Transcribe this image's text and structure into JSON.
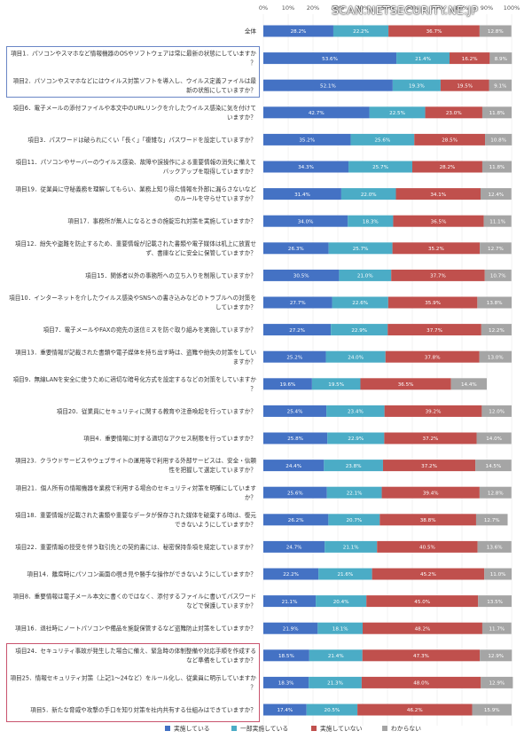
{
  "watermark": "SCAN.NETSECURITY.NE.JP",
  "colors": {
    "series": [
      "#4472c4",
      "#4bacc6",
      "#c0504d",
      "#a5a5a5"
    ],
    "highlight_blue": "#6a86c6",
    "highlight_red": "#c9546e"
  },
  "chart_data": {
    "type": "bar",
    "orientation": "horizontal",
    "stacked": "percent",
    "title": "",
    "xlim": [
      0,
      100
    ],
    "x_ticks": [
      "0%",
      "10%",
      "20%",
      "30%",
      "40%",
      "50%",
      "60%",
      "70%",
      "80%",
      "90%",
      "100%"
    ],
    "legend_position": "bottom",
    "series": [
      {
        "name": "実施している"
      },
      {
        "name": "一部実施している"
      },
      {
        "name": "実施していない"
      },
      {
        "name": "わからない"
      }
    ],
    "rows": [
      {
        "label": "全体",
        "values": [
          28.2,
          22.2,
          36.7,
          12.8
        ]
      },
      {
        "label": "項目1．パソコンやスマホなど情報機器のOSやソフトウェアは常に最新の状態にしていますか？",
        "values": [
          53.6,
          21.4,
          16.2,
          8.9
        ]
      },
      {
        "label": "項目2．パソコンやスマホなどにはウイルス対策ソフトを導入し、ウイルス定義ファイルは最新の状態にしていますか？",
        "values": [
          52.1,
          19.3,
          19.5,
          9.1
        ]
      },
      {
        "label": "項目6．電子メールの添付ファイルや本文中のURLリンクを介したウイルス感染に気を付けていますか？",
        "values": [
          42.7,
          22.5,
          23.0,
          11.8
        ]
      },
      {
        "label": "項目3．パスワードは破られにくい「長く」「複雑な」パスワードを設定していますか？",
        "values": [
          35.2,
          25.6,
          28.5,
          10.8
        ]
      },
      {
        "label": "項目11．パソコンやサーバーのウイルス感染、故障や誤操作による重要情報の消失に備えてバックアップを取得していますか？",
        "values": [
          34.3,
          25.7,
          28.2,
          11.8
        ]
      },
      {
        "label": "項目19．従業員に守秘義務を理解してもらい、業務上知り得た情報を外部に漏らさないなどのルールを守らせていますか？",
        "values": [
          31.4,
          22.0,
          34.1,
          12.4
        ]
      },
      {
        "label": "項目17．事務所が無人になるときの施錠忘れ対策を実施していますか？",
        "values": [
          34.0,
          18.3,
          36.5,
          11.1
        ]
      },
      {
        "label": "項目12．紛失や盗難を防止するため、重要情報が記載された書類や電子媒体は机上に放置せず、書庫などに安全に保管していますか？",
        "values": [
          26.3,
          25.7,
          35.2,
          12.7
        ]
      },
      {
        "label": "項目15．関係者以外の事務所への立ち入りを制限していますか？",
        "values": [
          30.5,
          21.0,
          37.7,
          10.7
        ]
      },
      {
        "label": "項目10．インターネットを介したウイルス感染やSNSへの書き込みなどのトラブルへの対策をしていますか？",
        "values": [
          27.7,
          22.6,
          35.9,
          13.8
        ]
      },
      {
        "label": "項目7．電子メールやFAXの宛先の送信ミスを防ぐ取り組みを実施していますか？",
        "values": [
          27.2,
          22.9,
          37.7,
          12.2
        ]
      },
      {
        "label": "項目13．重要情報が記載された書類や電子媒体を持ち出す時は、盗難や紛失の対策をしていますか？",
        "values": [
          25.2,
          24.0,
          37.8,
          13.0
        ]
      },
      {
        "label": "項目9．無線LANを安全に使うために適切な暗号化方式を設定するなどの対策をしていますか？",
        "values": [
          19.6,
          19.5,
          36.5,
          14.4
        ]
      },
      {
        "label": "項目20．従業員にセキュリティに関する教育や注意喚起を行っていますか？",
        "values": [
          25.4,
          23.4,
          39.2,
          12.0
        ]
      },
      {
        "label": "項目4．重要情報に対する適切なアクセス制限を行っていますか？",
        "values": [
          25.8,
          22.9,
          37.2,
          14.0
        ]
      },
      {
        "label": "項目23．クラウドサービスやウェブサイトの運用等で利用する外部サービスは、安全・信頼性を把握して選定していますか？",
        "values": [
          24.4,
          23.8,
          37.2,
          14.5
        ]
      },
      {
        "label": "項目21．個人所有の情報機器を業務で利用する場合のセキュリティ対策を明確にしていますか？",
        "values": [
          25.6,
          22.1,
          39.4,
          12.8
        ]
      },
      {
        "label": "項目18．重要情報が記載された書類や重要なデータが保存された媒体を破棄する時は、復元できないようにしていますか？",
        "values": [
          26.2,
          20.7,
          38.8,
          12.7
        ]
      },
      {
        "label": "項目22．重要情報の授受を伴う取引先との契約書には、秘密保持条項を規定していますか？",
        "values": [
          24.7,
          21.1,
          40.5,
          13.6
        ]
      },
      {
        "label": "項目14．離席時にパソコン画面の覗き見や勝手な操作ができないようにしていますか？",
        "values": [
          22.2,
          21.6,
          45.2,
          11.0
        ]
      },
      {
        "label": "項目8．重要情報は電子メール本文に書くのではなく、添付するファイルに書いてパスワードなどで保護していますか？",
        "values": [
          21.1,
          20.4,
          45.0,
          13.5
        ]
      },
      {
        "label": "項目16．退社時にノートパソコンや備品を施錠保管するなど盗難防止対策をしていますか？",
        "values": [
          21.9,
          18.1,
          48.2,
          11.7
        ]
      },
      {
        "label": "項目24．セキュリティ事故が発生した場合に備え、緊急時の体制整備や対応手順を作成するなど準備をしていますか？",
        "values": [
          18.5,
          21.4,
          47.3,
          12.9
        ]
      },
      {
        "label": "項目25．情報セキュリティ対策（上記1〜24など）をルール化し、従業員に明示していますか？",
        "values": [
          18.3,
          21.3,
          48.0,
          12.9
        ]
      },
      {
        "label": "項目5．新たな脅威や攻撃の手口を知り対策を社内共有する仕組みはできていますか？",
        "values": [
          17.4,
          20.5,
          46.2,
          15.9
        ]
      }
    ]
  }
}
